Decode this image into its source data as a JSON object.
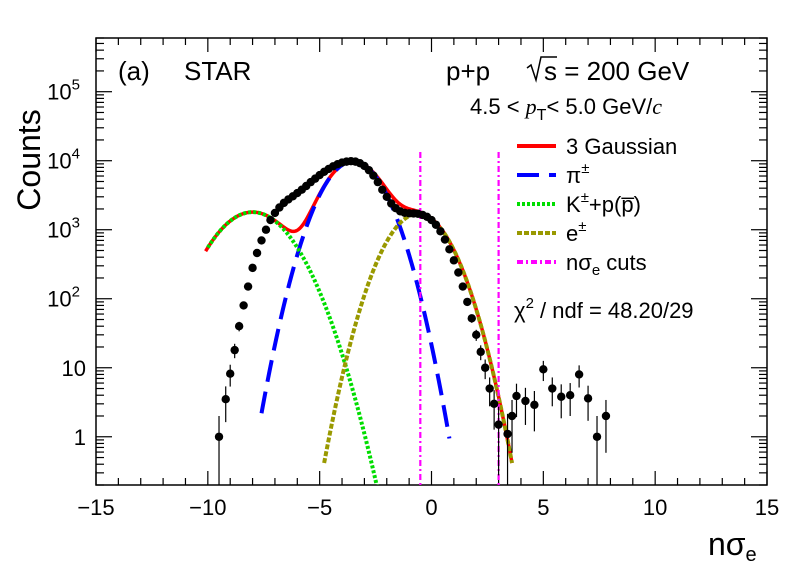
{
  "chart_data": {
    "type": "scatter",
    "ylabel": "Counts",
    "xlabel": {
      "main": "nσ",
      "sub": "e"
    },
    "xlim": [
      -15,
      15
    ],
    "ylim": [
      0.2,
      600000
    ],
    "yscale": "log",
    "x_ticks": [
      {
        "value": -15,
        "label": "−15"
      },
      {
        "value": -10,
        "label": "−10"
      },
      {
        "value": -5,
        "label": "−5"
      },
      {
        "value": 0,
        "label": "0"
      },
      {
        "value": 5,
        "label": "5"
      },
      {
        "value": 10,
        "label": "10"
      },
      {
        "value": 15,
        "label": "15"
      }
    ],
    "y_ticks": [
      {
        "value": 1,
        "label": "1"
      },
      {
        "value": 10,
        "label": "10"
      },
      {
        "value": 100,
        "label": "10",
        "exp": "2"
      },
      {
        "value": 1000,
        "label": "10",
        "exp": "3"
      },
      {
        "value": 10000,
        "label": "10",
        "exp": "4"
      },
      {
        "value": 100000,
        "label": "10",
        "exp": "5"
      }
    ],
    "annotations": {
      "panel": "(a)",
      "experiment": "STAR",
      "system": "p+p",
      "sqrt_s": "s = 200 GeV",
      "pt_left": "4.5 <",
      "pt_var": "p",
      "pt_sub": "T",
      "pt_right": "<  5.0 GeV/",
      "pt_unit": "c",
      "chi2_prefix": "χ",
      "chi2_exp": "2",
      "chi2_value": " / ndf = 48.20/29"
    },
    "legend": [
      {
        "key": "total",
        "main": "3 Gaussian",
        "sup": "",
        "sub": "",
        "tail": "",
        "color": "#ff0000",
        "dash": ""
      },
      {
        "key": "pion",
        "main": "π",
        "sup": "±",
        "sub": "",
        "tail": "",
        "color": "#0000ff",
        "dash": "22,10"
      },
      {
        "key": "kp",
        "main": "K",
        "sup": "±",
        "sub": "",
        "tail": "+p(p̅)",
        "color": "#00dd00",
        "dash": "3,2"
      },
      {
        "key": "electron",
        "main": "e",
        "sup": "±",
        "sub": "",
        "tail": "",
        "color": "#999900",
        "dash": "5,2"
      },
      {
        "key": "cuts",
        "main": "nσ",
        "sup": "",
        "sub": "e",
        "tail": " cuts",
        "color": "#ff00ff",
        "dash": "6,3,2,3"
      }
    ],
    "cuts": [
      -0.5,
      3.0
    ],
    "series": [
      {
        "name": "data",
        "points": [
          [
            -9.5,
            1.0
          ],
          [
            -9.2,
            3.5
          ],
          [
            -9.0,
            8.2
          ],
          [
            -8.8,
            18
          ],
          [
            -8.6,
            40
          ],
          [
            -8.4,
            80
          ],
          [
            -8.2,
            150
          ],
          [
            -8.0,
            280
          ],
          [
            -7.8,
            460
          ],
          [
            -7.6,
            700
          ],
          [
            -7.4,
            1000
          ],
          [
            -7.2,
            1380
          ],
          [
            -7.0,
            1750
          ],
          [
            -6.8,
            2100
          ],
          [
            -6.6,
            2450
          ],
          [
            -6.4,
            2750
          ],
          [
            -6.2,
            3050
          ],
          [
            -6.0,
            3400
          ],
          [
            -5.8,
            3800
          ],
          [
            -5.6,
            4300
          ],
          [
            -5.4,
            4900
          ],
          [
            -5.2,
            5500
          ],
          [
            -5.0,
            6200
          ],
          [
            -4.8,
            6900
          ],
          [
            -4.6,
            7600
          ],
          [
            -4.4,
            8300
          ],
          [
            -4.2,
            8900
          ],
          [
            -4.0,
            9400
          ],
          [
            -3.8,
            9700
          ],
          [
            -3.6,
            9850
          ],
          [
            -3.4,
            9700
          ],
          [
            -3.2,
            9200
          ],
          [
            -3.0,
            8400
          ],
          [
            -2.8,
            7300
          ],
          [
            -2.6,
            6100
          ],
          [
            -2.4,
            4900
          ],
          [
            -2.2,
            3800
          ],
          [
            -2.0,
            3000
          ],
          [
            -1.8,
            2400
          ],
          [
            -1.6,
            2050
          ],
          [
            -1.4,
            1850
          ],
          [
            -1.2,
            1760
          ],
          [
            -1.0,
            1730
          ],
          [
            -0.8,
            1720
          ],
          [
            -0.6,
            1700
          ],
          [
            -0.4,
            1640
          ],
          [
            -0.2,
            1540
          ],
          [
            0.0,
            1380
          ],
          [
            0.2,
            1180
          ],
          [
            0.4,
            950
          ],
          [
            0.6,
            720
          ],
          [
            0.8,
            520
          ],
          [
            1.0,
            360
          ],
          [
            1.2,
            240
          ],
          [
            1.4,
            150
          ],
          [
            1.6,
            90
          ],
          [
            1.8,
            52
          ],
          [
            2.0,
            30
          ],
          [
            2.2,
            17
          ],
          [
            2.4,
            10
          ],
          [
            2.6,
            5
          ],
          [
            2.8,
            3.0
          ],
          [
            3.0,
            1.5
          ],
          [
            3.4,
            1.1
          ],
          [
            3.6,
            2.0
          ],
          [
            3.8,
            3.9
          ],
          [
            4.2,
            3.3
          ],
          [
            4.6,
            2.9
          ],
          [
            5.0,
            9.5
          ],
          [
            5.4,
            5.0
          ],
          [
            5.8,
            3.8
          ],
          [
            6.2,
            4.0
          ],
          [
            6.6,
            8.0
          ],
          [
            7.0,
            3.6
          ],
          [
            7.4,
            1.0
          ],
          [
            7.8,
            2.0
          ]
        ]
      },
      {
        "name": "pion",
        "mean": -3.5,
        "sigma": 1.0,
        "amplitude": 9800,
        "range": [
          -7.6,
          0.8
        ]
      },
      {
        "name": "kp",
        "mean": -8.0,
        "sigma": 1.3,
        "amplitude": 1800,
        "range": [
          -10.0,
          -1.2
        ]
      },
      {
        "name": "electron",
        "mean": -0.6,
        "sigma": 1.03,
        "amplitude": 1700,
        "range": [
          -4.8,
          3.6
        ]
      }
    ]
  }
}
